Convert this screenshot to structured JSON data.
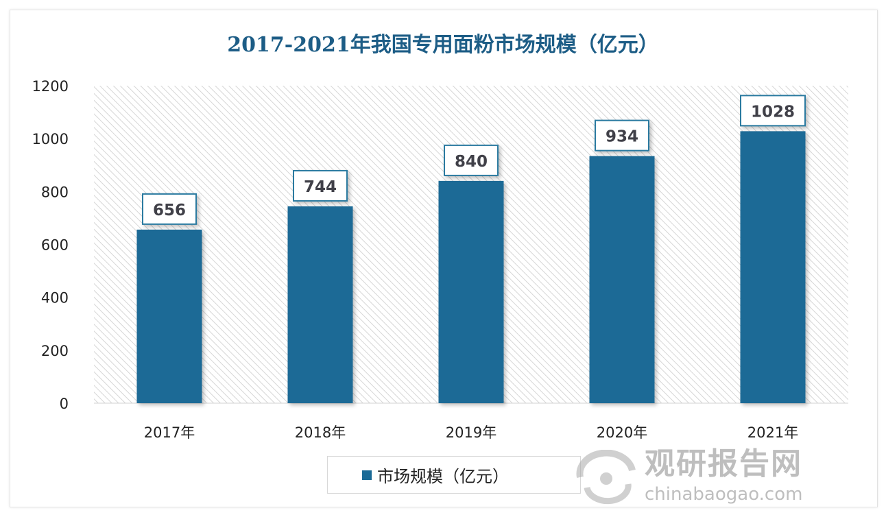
{
  "chart_data": {
    "type": "bar",
    "title": "2017-2021年我国专用面粉市场规模（亿元）",
    "categories": [
      "2017年",
      "2018年",
      "2019年",
      "2020年",
      "2021年"
    ],
    "series": [
      {
        "name": "市场规模（亿元）",
        "values": [
          656,
          744,
          840,
          934,
          1028
        ]
      }
    ],
    "data_labels": [
      "656",
      "744",
      "840",
      "934",
      "1028"
    ],
    "yticks": [
      "0",
      "200",
      "400",
      "600",
      "800",
      "1000",
      "1200"
    ],
    "ylim": [
      0,
      1200
    ],
    "xlabel": "",
    "ylabel": "",
    "grid": false,
    "legend_position": "bottom",
    "colors": {
      "bar": "#1a6a96",
      "title": "#1d5d86",
      "label_border": "#2a7aa0"
    }
  },
  "watermark": {
    "cn": "观研报告网",
    "en": "chinabaogao.com"
  }
}
